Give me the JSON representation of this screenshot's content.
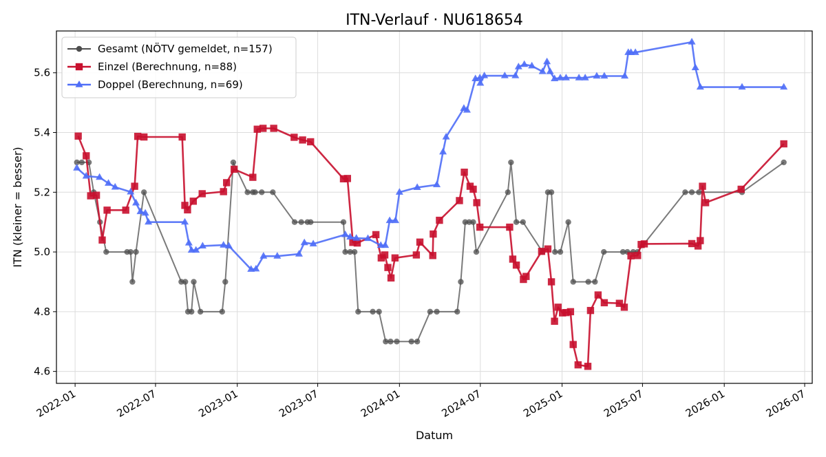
{
  "chart_data": {
    "type": "line",
    "title": "ITN-Verlauf · NU618654",
    "xlabel": "Datum",
    "ylabel": "ITN  (kleiner = besser)",
    "xlim": [
      "2021-11-20",
      "2026-07-18"
    ],
    "ylim": [
      4.56,
      5.74
    ],
    "x_ticks": [
      {
        "date": "2022-01-01",
        "label": "2022-01"
      },
      {
        "date": "2022-07-01",
        "label": "2022-07"
      },
      {
        "date": "2023-01-01",
        "label": "2023-01"
      },
      {
        "date": "2023-07-01",
        "label": "2023-07"
      },
      {
        "date": "2024-01-01",
        "label": "2024-01"
      },
      {
        "date": "2024-07-01",
        "label": "2024-07"
      },
      {
        "date": "2025-01-01",
        "label": "2025-01"
      },
      {
        "date": "2025-07-01",
        "label": "2025-07"
      },
      {
        "date": "2026-01-01",
        "label": "2026-01"
      },
      {
        "date": "2026-07-01",
        "label": "2026-07"
      }
    ],
    "y_ticks": [
      {
        "value": 4.6,
        "label": "4.6"
      },
      {
        "value": 4.8,
        "label": "4.8"
      },
      {
        "value": 5.0,
        "label": "5.0"
      },
      {
        "value": 5.2,
        "label": "5.2"
      },
      {
        "value": 5.4,
        "label": "5.4"
      },
      {
        "value": 5.6,
        "label": "5.6"
      }
    ],
    "grid": true,
    "legend_position": "top-left",
    "series": [
      {
        "name": "Gesamt (NÖTV gemeldet, n=157)",
        "color": "#4d4d4d",
        "marker": "circle",
        "points": [
          [
            "2022-01-05",
            5.3
          ],
          [
            "2022-01-16",
            5.3
          ],
          [
            "2022-02-01",
            5.3
          ],
          [
            "2022-02-12",
            5.2
          ],
          [
            "2022-02-26",
            5.1
          ],
          [
            "2022-03-12",
            5.0
          ],
          [
            "2022-04-28",
            5.0
          ],
          [
            "2022-05-06",
            5.0
          ],
          [
            "2022-05-10",
            4.9
          ],
          [
            "2022-05-18",
            5.0
          ],
          [
            "2022-06-05",
            5.2
          ],
          [
            "2022-08-28",
            4.9
          ],
          [
            "2022-09-06",
            4.9
          ],
          [
            "2022-09-12",
            4.8
          ],
          [
            "2022-09-20",
            4.8
          ],
          [
            "2022-09-25",
            4.9
          ],
          [
            "2022-10-10",
            4.8
          ],
          [
            "2022-11-28",
            4.8
          ],
          [
            "2022-12-05",
            4.9
          ],
          [
            "2022-12-23",
            5.3
          ],
          [
            "2023-01-24",
            5.2
          ],
          [
            "2023-02-05",
            5.2
          ],
          [
            "2023-02-10",
            5.2
          ],
          [
            "2023-02-25",
            5.2
          ],
          [
            "2023-03-22",
            5.2
          ],
          [
            "2023-05-10",
            5.1
          ],
          [
            "2023-05-25",
            5.1
          ],
          [
            "2023-06-08",
            5.1
          ],
          [
            "2023-06-15",
            5.1
          ],
          [
            "2023-08-28",
            5.1
          ],
          [
            "2023-09-01",
            5.0
          ],
          [
            "2023-09-12",
            5.0
          ],
          [
            "2023-09-22",
            5.0
          ],
          [
            "2023-09-30",
            4.8
          ],
          [
            "2023-11-02",
            4.8
          ],
          [
            "2023-11-16",
            4.8
          ],
          [
            "2023-12-01",
            4.7
          ],
          [
            "2023-12-12",
            4.7
          ],
          [
            "2023-12-26",
            4.7
          ],
          [
            "2024-01-28",
            4.7
          ],
          [
            "2024-02-10",
            4.7
          ],
          [
            "2024-03-10",
            4.8
          ],
          [
            "2024-03-25",
            4.8
          ],
          [
            "2024-05-10",
            4.8
          ],
          [
            "2024-05-18",
            4.9
          ],
          [
            "2024-05-28",
            5.1
          ],
          [
            "2024-06-06",
            5.1
          ],
          [
            "2024-06-15",
            5.1
          ],
          [
            "2024-06-22",
            5.0
          ],
          [
            "2024-09-01",
            5.2
          ],
          [
            "2024-09-08",
            5.3
          ],
          [
            "2024-09-20",
            5.1
          ],
          [
            "2024-10-05",
            5.1
          ],
          [
            "2024-11-18",
            5.0
          ],
          [
            "2024-11-30",
            5.2
          ],
          [
            "2024-12-08",
            5.2
          ],
          [
            "2024-12-16",
            5.0
          ],
          [
            "2024-12-28",
            5.0
          ],
          [
            "2025-01-15",
            5.1
          ],
          [
            "2025-01-26",
            4.9
          ],
          [
            "2025-03-01",
            4.9
          ],
          [
            "2025-03-16",
            4.9
          ],
          [
            "2025-04-05",
            5.0
          ],
          [
            "2025-05-18",
            5.0
          ],
          [
            "2025-05-28",
            5.0
          ],
          [
            "2025-06-10",
            5.0
          ],
          [
            "2025-06-20",
            5.0
          ],
          [
            "2025-10-05",
            5.2
          ],
          [
            "2025-10-20",
            5.2
          ],
          [
            "2025-11-05",
            5.2
          ],
          [
            "2026-02-10",
            5.2
          ],
          [
            "2026-05-15",
            5.3
          ]
        ]
      },
      {
        "name": "Einzel (Berechnung, n=88)",
        "color": "#c8102e",
        "marker": "square",
        "points": [
          [
            "2022-01-08",
            5.388
          ],
          [
            "2022-01-26",
            5.322
          ],
          [
            "2022-02-05",
            5.188
          ],
          [
            "2022-02-18",
            5.19
          ],
          [
            "2022-03-03",
            5.04
          ],
          [
            "2022-03-14",
            5.14
          ],
          [
            "2022-04-25",
            5.14
          ],
          [
            "2022-05-15",
            5.22
          ],
          [
            "2022-05-22",
            5.387
          ],
          [
            "2022-06-05",
            5.385
          ],
          [
            "2022-08-30",
            5.385
          ],
          [
            "2022-09-05",
            5.156
          ],
          [
            "2022-09-11",
            5.141
          ],
          [
            "2022-09-24",
            5.17
          ],
          [
            "2022-10-14",
            5.195
          ],
          [
            "2022-12-01",
            5.202
          ],
          [
            "2022-12-08",
            5.232
          ],
          [
            "2022-12-25",
            5.277
          ],
          [
            "2023-02-05",
            5.25
          ],
          [
            "2023-02-15",
            5.411
          ],
          [
            "2023-02-28",
            5.414
          ],
          [
            "2023-03-24",
            5.414
          ],
          [
            "2023-05-09",
            5.384
          ],
          [
            "2023-05-28",
            5.375
          ],
          [
            "2023-06-15",
            5.369
          ],
          [
            "2023-08-28",
            5.245
          ],
          [
            "2023-09-06",
            5.246
          ],
          [
            "2023-09-18",
            5.032
          ],
          [
            "2023-09-28",
            5.03
          ],
          [
            "2023-11-09",
            5.058
          ],
          [
            "2023-11-21",
            4.98
          ],
          [
            "2023-11-29",
            4.99
          ],
          [
            "2023-12-06",
            4.948
          ],
          [
            "2023-12-13",
            4.913
          ],
          [
            "2023-12-22",
            4.98
          ],
          [
            "2024-02-08",
            4.99
          ],
          [
            "2024-02-16",
            5.033
          ],
          [
            "2024-03-16",
            4.988
          ],
          [
            "2024-03-17",
            5.06
          ],
          [
            "2024-03-31",
            5.106
          ],
          [
            "2024-05-15",
            5.172
          ],
          [
            "2024-05-26",
            5.267
          ],
          [
            "2024-06-08",
            5.22
          ],
          [
            "2024-06-15",
            5.21
          ],
          [
            "2024-06-23",
            5.165
          ],
          [
            "2024-06-30",
            5.083
          ],
          [
            "2024-09-05",
            5.083
          ],
          [
            "2024-09-12",
            4.976
          ],
          [
            "2024-09-20",
            4.956
          ],
          [
            "2024-10-06",
            4.908
          ],
          [
            "2024-10-12",
            4.918
          ],
          [
            "2024-11-16",
            5.002
          ],
          [
            "2024-11-30",
            5.01
          ],
          [
            "2024-12-08",
            4.9
          ],
          [
            "2024-12-15",
            4.768
          ],
          [
            "2024-12-23",
            4.815
          ],
          [
            "2025-01-02",
            4.796
          ],
          [
            "2025-01-10",
            4.797
          ],
          [
            "2025-01-20",
            4.8
          ],
          [
            "2025-01-26",
            4.69
          ],
          [
            "2025-02-06",
            4.622
          ],
          [
            "2025-02-28",
            4.617
          ],
          [
            "2025-03-06",
            4.804
          ],
          [
            "2025-03-23",
            4.856
          ],
          [
            "2025-04-06",
            4.83
          ],
          [
            "2025-05-10",
            4.828
          ],
          [
            "2025-05-21",
            4.815
          ],
          [
            "2025-06-05",
            4.987
          ],
          [
            "2025-06-20",
            4.988
          ],
          [
            "2025-06-28",
            5.025
          ],
          [
            "2025-07-05",
            5.027
          ],
          [
            "2025-10-20",
            5.028
          ],
          [
            "2025-11-03",
            5.02
          ],
          [
            "2025-11-08",
            5.038
          ],
          [
            "2025-11-13",
            5.22
          ],
          [
            "2025-11-20",
            5.165
          ],
          [
            "2026-02-08",
            5.21
          ],
          [
            "2026-05-15",
            5.362
          ]
        ]
      },
      {
        "name": "Doppel (Berechnung, n=69)",
        "color": "#4f6ef7",
        "marker": "triangle",
        "points": [
          [
            "2022-01-05",
            5.281
          ],
          [
            "2022-01-26",
            5.254
          ],
          [
            "2022-02-25",
            5.25
          ],
          [
            "2022-03-17",
            5.23
          ],
          [
            "2022-04-01",
            5.217
          ],
          [
            "2022-05-06",
            5.201
          ],
          [
            "2022-05-18",
            5.164
          ],
          [
            "2022-05-28",
            5.135
          ],
          [
            "2022-06-08",
            5.13
          ],
          [
            "2022-06-15",
            5.1
          ],
          [
            "2022-09-05",
            5.1
          ],
          [
            "2022-09-14",
            5.03
          ],
          [
            "2022-09-20",
            5.006
          ],
          [
            "2022-09-30",
            5.006
          ],
          [
            "2022-10-15",
            5.02
          ],
          [
            "2022-12-01",
            5.023
          ],
          [
            "2022-12-13",
            5.02
          ],
          [
            "2023-02-01",
            4.942
          ],
          [
            "2023-02-12",
            4.943
          ],
          [
            "2023-03-01",
            4.986
          ],
          [
            "2023-04-01",
            4.986
          ],
          [
            "2023-05-20",
            4.993
          ],
          [
            "2023-06-01",
            5.031
          ],
          [
            "2023-06-21",
            5.027
          ],
          [
            "2023-09-01",
            5.058
          ],
          [
            "2023-09-12",
            5.05
          ],
          [
            "2023-09-26",
            5.046
          ],
          [
            "2023-10-22",
            5.045
          ],
          [
            "2023-11-20",
            5.022
          ],
          [
            "2023-11-30",
            5.022
          ],
          [
            "2023-12-10",
            5.105
          ],
          [
            "2023-12-23",
            5.105
          ],
          [
            "2024-01-01",
            5.2
          ],
          [
            "2024-02-10",
            5.216
          ],
          [
            "2024-03-25",
            5.225
          ],
          [
            "2024-04-08",
            5.335
          ],
          [
            "2024-04-15",
            5.385
          ],
          [
            "2024-05-25",
            5.481
          ],
          [
            "2024-06-01",
            5.475
          ],
          [
            "2024-06-20",
            5.58
          ],
          [
            "2024-06-30",
            5.583
          ],
          [
            "2024-07-01",
            5.565
          ],
          [
            "2024-07-10",
            5.59
          ],
          [
            "2024-08-25",
            5.59
          ],
          [
            "2024-09-18",
            5.59
          ],
          [
            "2024-09-25",
            5.62
          ],
          [
            "2024-10-08",
            5.628
          ],
          [
            "2024-10-25",
            5.623
          ],
          [
            "2024-11-18",
            5.604
          ],
          [
            "2024-11-28",
            5.637
          ],
          [
            "2024-12-05",
            5.604
          ],
          [
            "2024-12-15",
            5.58
          ],
          [
            "2024-12-28",
            5.583
          ],
          [
            "2025-01-10",
            5.583
          ],
          [
            "2025-02-08",
            5.583
          ],
          [
            "2025-02-22",
            5.583
          ],
          [
            "2025-03-20",
            5.589
          ],
          [
            "2025-04-06",
            5.589
          ],
          [
            "2025-05-22",
            5.589
          ],
          [
            "2025-05-30",
            5.668
          ],
          [
            "2025-06-05",
            5.668
          ],
          [
            "2025-06-15",
            5.668
          ],
          [
            "2025-10-20",
            5.703
          ],
          [
            "2025-10-28",
            5.617
          ],
          [
            "2025-11-08",
            5.552
          ],
          [
            "2026-02-10",
            5.552
          ],
          [
            "2026-05-15",
            5.552
          ]
        ]
      }
    ]
  }
}
